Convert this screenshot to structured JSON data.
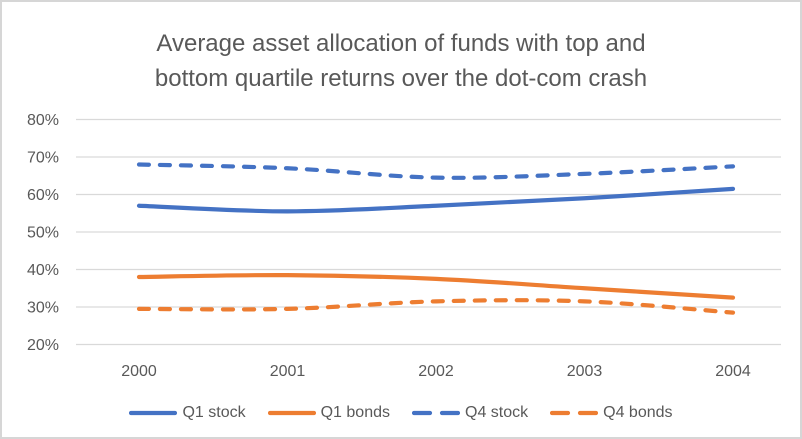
{
  "title": {
    "lines": [
      "Average asset allocation of funds with top and",
      "bottom quartile returns over the dot-com crash"
    ]
  },
  "chart_data": {
    "type": "line",
    "title": "Average asset allocation of funds with top and bottom quartile returns over the dot-com crash",
    "categories": [
      "2000",
      "2001",
      "2002",
      "2003",
      "2004"
    ],
    "series": [
      {
        "name": "Q1 stock",
        "color": "#4472C4",
        "dashed": false,
        "values": [
          57,
          55.5,
          57,
          59,
          61.5
        ]
      },
      {
        "name": "Q1 bonds",
        "color": "#ED7D31",
        "dashed": false,
        "values": [
          38,
          38.5,
          37.5,
          35,
          32.5
        ]
      },
      {
        "name": "Q4 stock",
        "color": "#4472C4",
        "dashed": true,
        "values": [
          68,
          67,
          64.5,
          65.5,
          67.5
        ]
      },
      {
        "name": "Q4 bonds",
        "color": "#ED7D31",
        "dashed": true,
        "values": [
          29.5,
          29.5,
          31.5,
          31.5,
          28.5
        ]
      }
    ],
    "ylim": [
      20,
      80
    ],
    "yticks": [
      20,
      30,
      40,
      50,
      60,
      70,
      80
    ],
    "ytick_labels": [
      "20%",
      "30%",
      "40%",
      "50%",
      "60%",
      "70%",
      "80%"
    ],
    "xlabel": "",
    "ylabel": "",
    "grid": "horizontal",
    "gridline_color": "#D9D9D9",
    "text_color": "#595959",
    "legend_position": "bottom",
    "smoothed": true
  }
}
